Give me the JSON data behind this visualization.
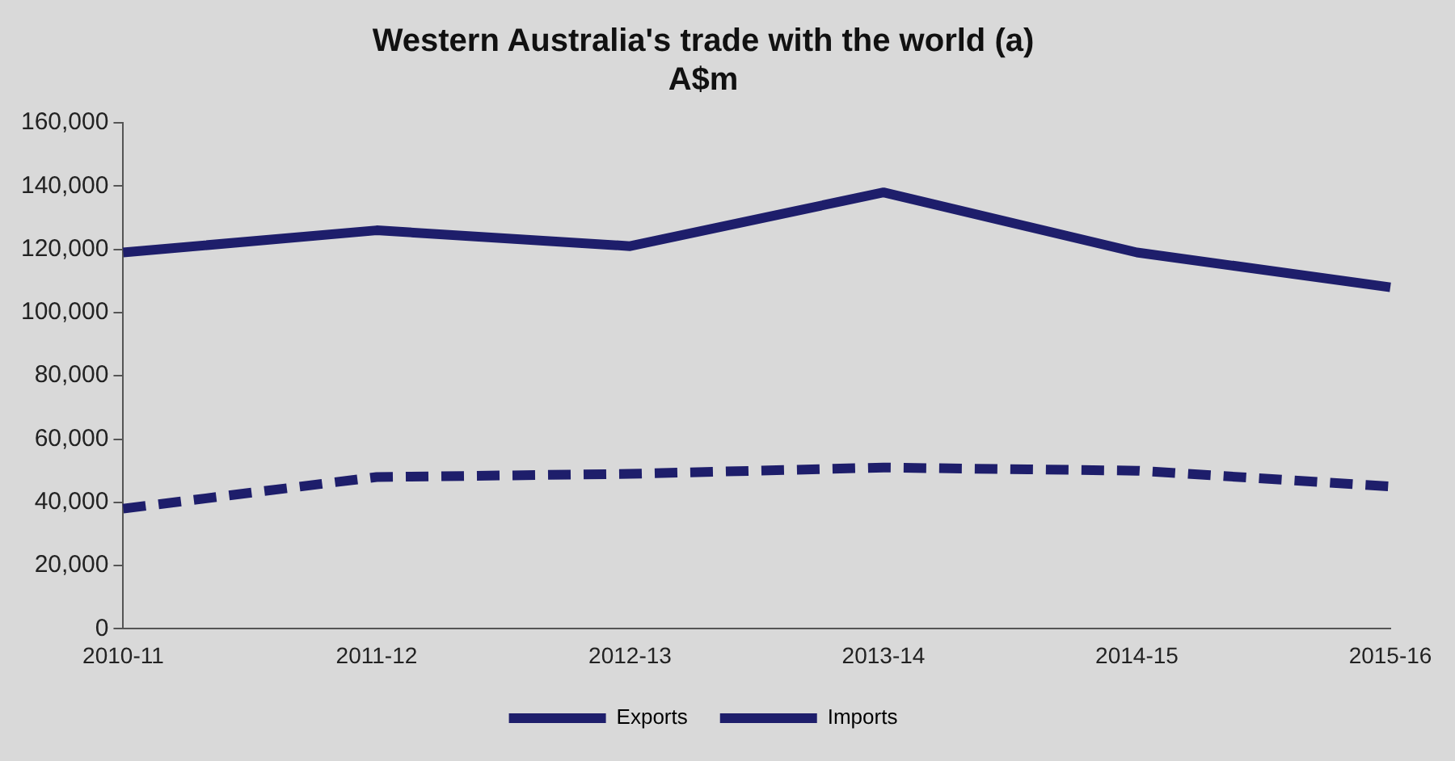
{
  "chart_data": {
    "type": "line",
    "title": "Western Australia's trade with the world (a)",
    "subtitle": "A$m",
    "categories": [
      "2010-11",
      "2011-12",
      "2012-13",
      "2013-14",
      "2014-15",
      "2015-16"
    ],
    "series": [
      {
        "name": "Exports",
        "color": "#1e1e6b",
        "line_style": "solid",
        "values": [
          119000,
          126000,
          121000,
          138000,
          119000,
          108000
        ]
      },
      {
        "name": "Imports",
        "color": "#1e1e6b",
        "line_style": "dashed",
        "values": [
          38000,
          48000,
          49000,
          51000,
          50000,
          45000
        ]
      }
    ],
    "ylim": [
      0,
      160000
    ],
    "yticks": [
      0,
      {
        "value": 20000,
        "label": "20,000"
      },
      {
        "value": 40000,
        "label": "40,000"
      },
      {
        "value": 60000,
        "label": "60,000"
      },
      {
        "value": 80000,
        "label": "80,000"
      },
      {
        "value": 100000,
        "label": "100,000"
      },
      {
        "value": 120000,
        "label": "120,000"
      },
      {
        "value": 140000,
        "label": "140,000"
      },
      {
        "value": 160000,
        "label": "160,000"
      }
    ],
    "grid": false,
    "legend": "bottom",
    "marker": "none"
  }
}
